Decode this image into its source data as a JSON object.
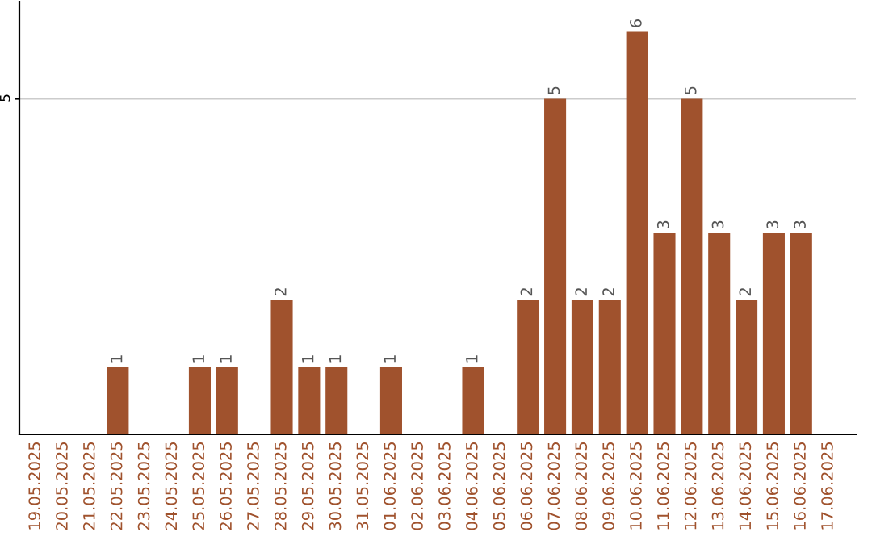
{
  "chart_data": {
    "type": "bar",
    "categories": [
      "19.05.2025",
      "20.05.2025",
      "21.05.2025",
      "22.05.2025",
      "23.05.2025",
      "24.05.2025",
      "25.05.2025",
      "26.05.2025",
      "27.05.2025",
      "28.05.2025",
      "29.05.2025",
      "30.05.2025",
      "31.05.2025",
      "01.06.2025",
      "02.06.2025",
      "03.06.2025",
      "04.06.2025",
      "05.06.2025",
      "06.06.2025",
      "07.06.2025",
      "08.06.2025",
      "09.06.2025",
      "10.06.2025",
      "11.06.2025",
      "12.06.2025",
      "13.06.2025",
      "14.06.2025",
      "15.06.2025",
      "16.06.2025",
      "17.06.2025"
    ],
    "values": [
      0,
      0,
      0,
      1,
      0,
      0,
      1,
      1,
      0,
      2,
      1,
      1,
      0,
      1,
      0,
      0,
      1,
      0,
      2,
      5,
      2,
      2,
      6,
      3,
      5,
      3,
      2,
      3,
      3,
      0
    ],
    "color": "#a0522d",
    "value_labels": [
      null,
      null,
      null,
      "1",
      null,
      null,
      "1",
      "1",
      null,
      "2",
      "1",
      "1",
      null,
      "1",
      null,
      null,
      "1",
      null,
      "2",
      "5",
      "2",
      "2",
      "6",
      "3",
      "5",
      "3",
      "2",
      "3",
      "3",
      null
    ],
    "ylim": [
      0,
      6.45
    ],
    "yticks": [
      5
    ],
    "grid": "y"
  }
}
